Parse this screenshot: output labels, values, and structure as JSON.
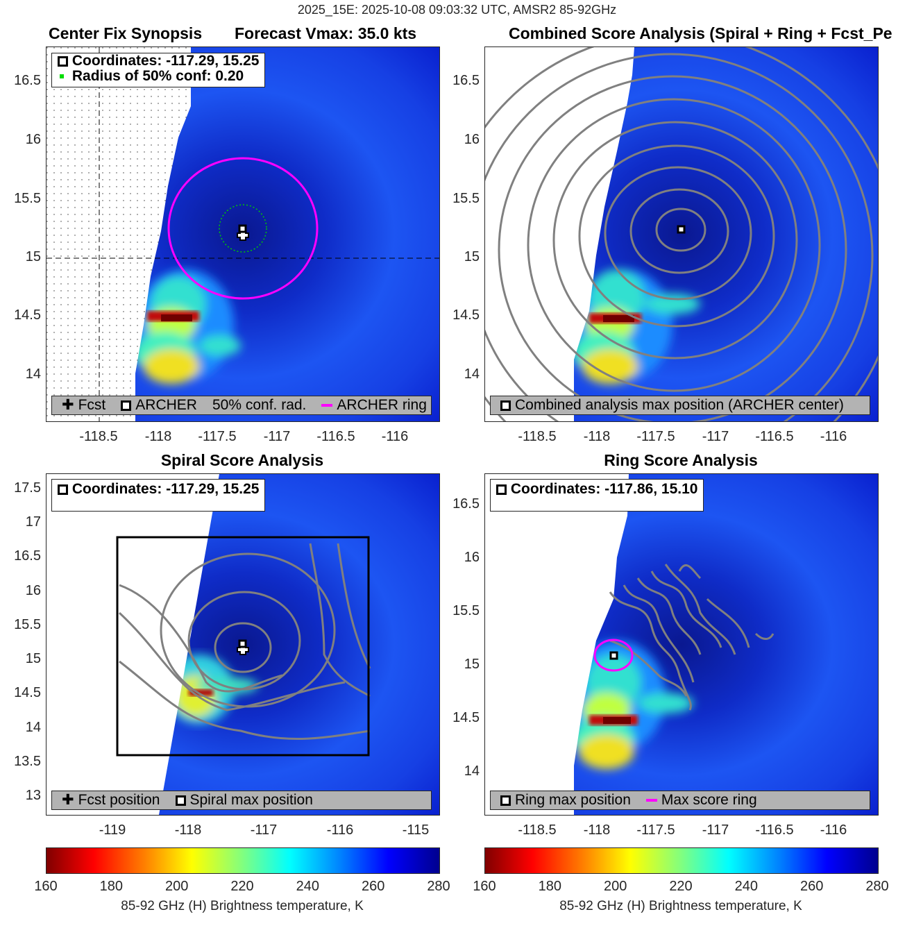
{
  "title": "2025_15E: 2025-10-08 09:03:32 UTC, AMSR2 85-92GHz",
  "panels": [
    {
      "title_left": "Center Fix Synopsis",
      "title_right": "Forecast Vmax: 35.0 kts",
      "legend_top": [
        "Coordinates: -117.29, 15.25",
        "Radius of 50% conf: 0.20"
      ],
      "legend_bottom": [
        "Fcst",
        "ARCHER",
        "50% conf. rad.",
        "ARCHER ring"
      ],
      "xticks": [
        "-118.5",
        "-118",
        "-117.5",
        "-117",
        "-116.5",
        "-116"
      ],
      "yticks": [
        "16.5",
        "16",
        "15.5",
        "15",
        "14.5",
        "14"
      ]
    },
    {
      "title": "Combined Score Analysis (Spiral + Ring + Fcst_Pe",
      "legend_bottom": [
        "Combined analysis max position (ARCHER center)"
      ],
      "xticks": [
        "-118.5",
        "-118",
        "-117.5",
        "-117",
        "-116.5",
        "-116"
      ],
      "yticks": [
        "16.5",
        "16",
        "15.5",
        "15",
        "14.5",
        "14"
      ]
    },
    {
      "title": "Spiral Score Analysis",
      "legend_top": [
        "Coordinates: -117.29, 15.25"
      ],
      "legend_bottom": [
        "Fcst position",
        "Spiral max position"
      ],
      "xticks": [
        "-119",
        "-118",
        "-117",
        "-116",
        "-115"
      ],
      "yticks": [
        "17.5",
        "17",
        "16.5",
        "16",
        "15.5",
        "15",
        "14.5",
        "14",
        "13.5",
        "13"
      ]
    },
    {
      "title": "Ring Score Analysis",
      "legend_top": [
        "Coordinates: -117.86, 15.10"
      ],
      "legend_bottom": [
        "Ring max position",
        "Max score ring"
      ],
      "xticks": [
        "-118.5",
        "-118",
        "-117.5",
        "-117",
        "-116.5",
        "-116"
      ],
      "yticks": [
        "16.5",
        "16",
        "15.5",
        "15",
        "14.5",
        "14"
      ]
    }
  ],
  "colorbar": {
    "ticks": [
      "160",
      "180",
      "200",
      "220",
      "240",
      "260",
      "280"
    ],
    "label": "85-92 GHz (H) Brightness temperature, K"
  },
  "colors": {
    "ring": "#ff00ff",
    "conf": "#00cc00",
    "contour": "#808080"
  }
}
